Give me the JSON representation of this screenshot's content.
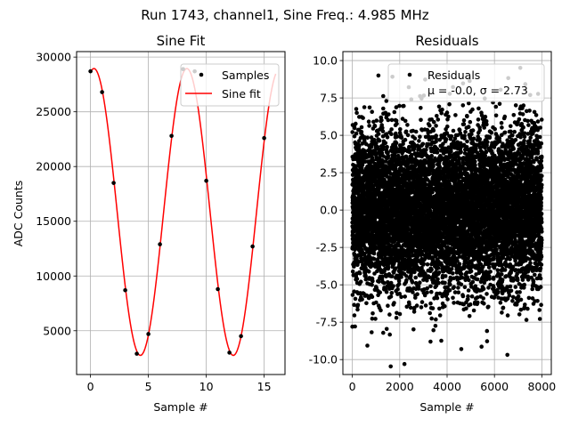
{
  "figure": {
    "suptitle": "Run 1743, channel1, Sine Freq.: 4.985 MHz"
  },
  "chart_data": [
    {
      "type": "scatter+line",
      "title": "Sine Fit",
      "xlabel": "Sample #",
      "ylabel": "ADC Counts",
      "xlim": [
        -1.2,
        16.8
      ],
      "ylim": [
        1000,
        30500
      ],
      "xticks": [
        0,
        5,
        10,
        15
      ],
      "yticks": [
        5000,
        10000,
        15000,
        20000,
        25000,
        30000
      ],
      "grid": true,
      "legend_position": "upper right",
      "legend": [
        "Samples",
        "Sine fit"
      ],
      "samples": {
        "x": [
          0,
          1,
          2,
          3,
          4,
          5,
          6,
          7,
          8,
          9,
          10,
          11,
          12,
          13,
          14,
          15
        ],
        "y": [
          28700,
          26800,
          18500,
          8700,
          2900,
          4700,
          12900,
          22800,
          28900,
          28700,
          18700,
          8800,
          3000,
          4500,
          12700,
          22600
        ]
      },
      "fit": {
        "offset": 15850,
        "amplitude": 13100,
        "period_samples": 8.024,
        "peak_at_sample": 0.3,
        "x_range": [
          0,
          16
        ]
      },
      "colors": {
        "samples": "#000000",
        "fit": "#ff0000"
      }
    },
    {
      "type": "scatter",
      "title": "Residuals",
      "xlabel": "Sample #",
      "ylabel": "",
      "xlim": [
        -400,
        8400
      ],
      "ylim": [
        -11.0,
        10.6
      ],
      "xticks": [
        0,
        2000,
        4000,
        6000,
        8000
      ],
      "yticks": [
        -10.0,
        -7.5,
        -5.0,
        -2.5,
        0.0,
        2.5,
        5.0,
        7.5,
        10.0
      ],
      "grid": true,
      "legend_position": "upper right",
      "legend": [
        "Residuals",
        "μ = -0.0, σ = 2.73"
      ],
      "stats": {
        "n_points": 8000,
        "mean": -0.0,
        "sigma": 2.73
      },
      "notable_points": [
        {
          "x": 2200,
          "y": -10.3
        },
        {
          "x": 4600,
          "y": -9.3
        },
        {
          "x": 1100,
          "y": 9.0
        },
        {
          "x": 3300,
          "y": -8.8
        },
        {
          "x": 0,
          "y": -7.8
        }
      ],
      "colors": {
        "points": "#000000"
      }
    }
  ]
}
